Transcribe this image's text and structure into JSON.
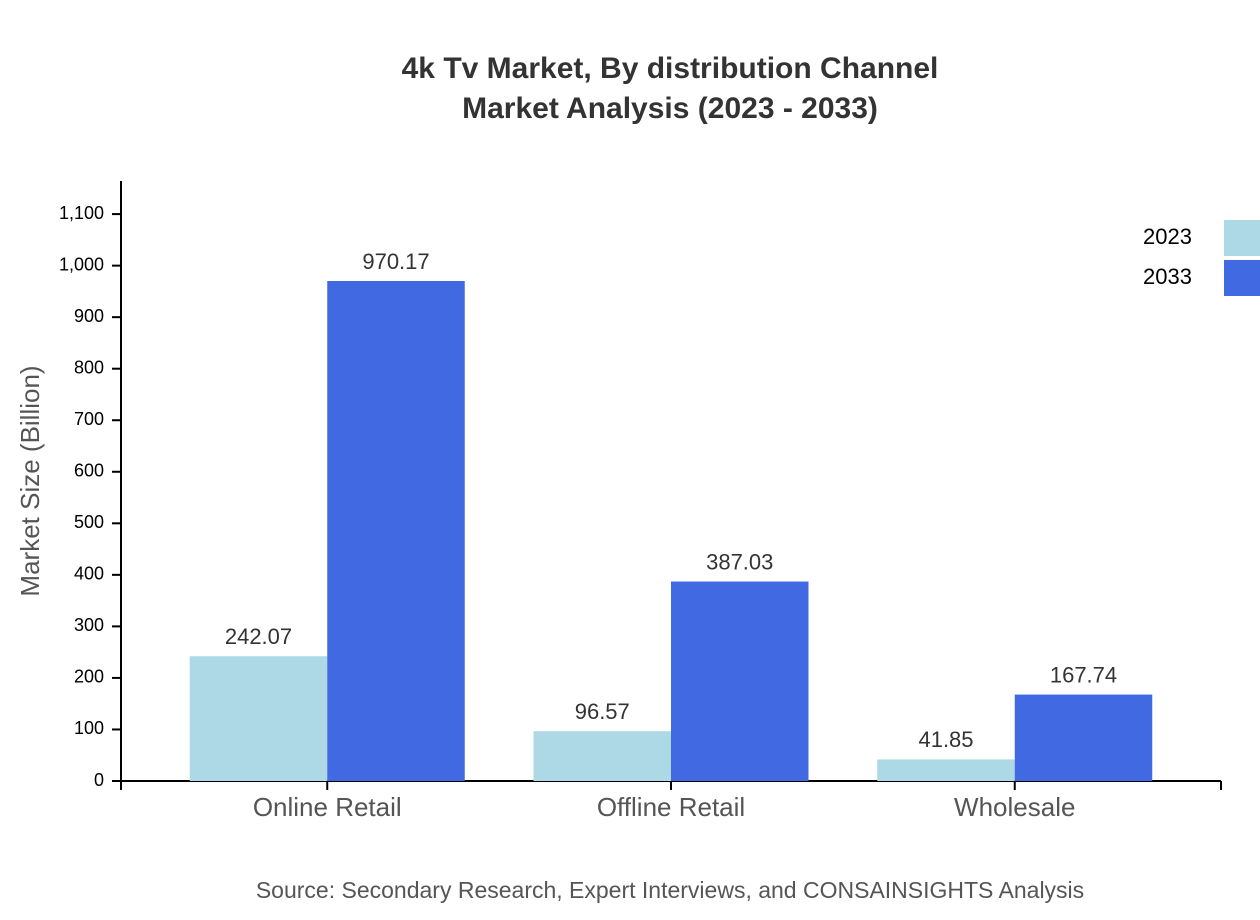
{
  "chart_data": {
    "type": "bar",
    "title": "4k Tv Market, By distribution Channel",
    "subtitle": "Market Analysis (2023 - 2033)",
    "ylabel": "Market Size (Billion)",
    "source": "Source: Secondary Research, Expert Interviews, and CONSAINSIGHTS Analysis",
    "categories": [
      "Online Retail",
      "Offline Retail",
      "Wholesale"
    ],
    "series": [
      {
        "name": "2023",
        "color": "#add8e6",
        "values": [
          242.07,
          96.57,
          41.85
        ]
      },
      {
        "name": "2033",
        "color": "#4169e1",
        "values": [
          970.17,
          387.03,
          167.74
        ]
      }
    ],
    "ylim": [
      0,
      1164.2
    ],
    "yticks": [
      0,
      100,
      200,
      300,
      400,
      500,
      600,
      700,
      800,
      900,
      {
        "value": 1000,
        "label": "1,000"
      },
      {
        "value": 1100,
        "label": "1,100"
      }
    ],
    "legend": "top-right"
  }
}
